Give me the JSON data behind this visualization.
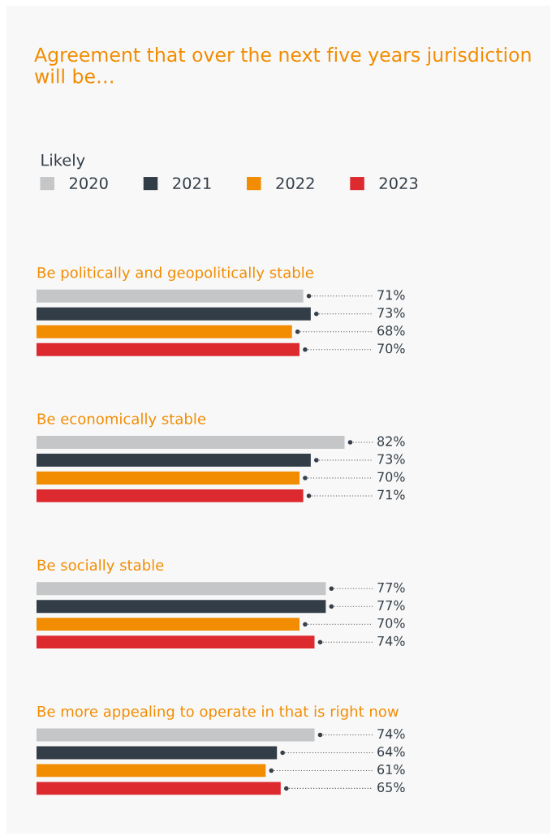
{
  "chart_data": {
    "type": "bar",
    "orientation": "horizontal",
    "title": "Agreement that over the next five years jurisdiction will be…",
    "legend_title": "Likely",
    "legend": "top",
    "tick_labels": false,
    "categories": [
      "Be politically and geopolitically stable",
      "Be economically stable",
      "Be socially stable",
      "Be more appealing to operate in that is right now"
    ],
    "series": [
      {
        "name": "2020",
        "color": "#c4c6c8",
        "values": [
          71,
          82,
          77,
          74
        ],
        "value_labels": [
          "71%",
          "82%",
          "77%",
          "74%"
        ]
      },
      {
        "name": "2021",
        "color": "#333d47",
        "values": [
          73,
          73,
          77,
          64
        ],
        "value_labels": [
          "73%",
          "73%",
          "77%",
          "64%"
        ]
      },
      {
        "name": "2022",
        "color": "#f28c00",
        "values": [
          68,
          70,
          70,
          61
        ],
        "value_labels": [
          "68%",
          "70%",
          "70%",
          "61%"
        ]
      },
      {
        "name": "2023",
        "color": "#dc2a2f",
        "values": [
          70,
          71,
          74,
          65
        ],
        "value_labels": [
          "70%",
          "71%",
          "74%",
          "65%"
        ]
      }
    ]
  }
}
